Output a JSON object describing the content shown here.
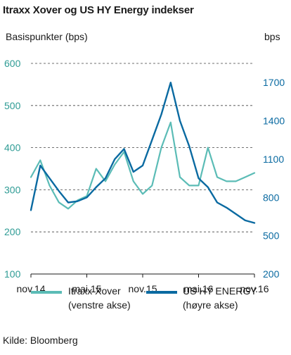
{
  "title": "Itraxx Xover og US HY Energy indekser",
  "source": "Kilde: Bloomberg",
  "colors": {
    "xover": "#5bbcb6",
    "energy": "#0a6aa1",
    "left_axis_text": "#2f9c95",
    "right_axis_text": "#0a6aa1",
    "grid": "#444444"
  },
  "chart_data": {
    "type": "line",
    "title": "Itraxx Xover og US HY Energy indekser",
    "ylabel_left": "Basispunkter (bps)",
    "ylabel_right": "bps",
    "x_ticks": [
      "nov.14",
      "mai.15",
      "nov.15",
      "mai.16",
      "nov.16"
    ],
    "x_range": [
      "2014-11",
      "2016-11"
    ],
    "ylim_left": [
      100,
      600
    ],
    "yticks_left": [
      100,
      200,
      300,
      400,
      500,
      600
    ],
    "ylim_right": [
      200,
      1850
    ],
    "yticks_right": [
      200,
      500,
      800,
      1100,
      1400,
      1700
    ],
    "grid": "horizontal dashed",
    "legend_position": "bottom",
    "series": [
      {
        "name": "Itraxx Xover",
        "legend_note": "(venstre akse)",
        "axis": "left",
        "x": [
          "2014-11",
          "2014-12",
          "2015-01",
          "2015-02",
          "2015-03",
          "2015-04",
          "2015-05",
          "2015-06",
          "2015-07",
          "2015-08",
          "2015-09",
          "2015-10",
          "2015-11",
          "2015-12",
          "2016-01",
          "2016-02",
          "2016-03",
          "2016-04",
          "2016-05",
          "2016-06",
          "2016-07",
          "2016-08",
          "2016-09",
          "2016-10",
          "2016-11"
        ],
        "values": [
          330,
          370,
          310,
          270,
          255,
          275,
          285,
          350,
          320,
          360,
          390,
          320,
          290,
          310,
          400,
          460,
          330,
          310,
          310,
          400,
          330,
          320,
          320,
          330,
          340
        ]
      },
      {
        "name": "US HY ENERGY",
        "legend_note": "(høyre akse)",
        "axis": "right",
        "x": [
          "2014-11",
          "2014-12",
          "2015-01",
          "2015-02",
          "2015-03",
          "2015-04",
          "2015-05",
          "2015-06",
          "2015-07",
          "2015-08",
          "2015-09",
          "2015-10",
          "2015-11",
          "2015-12",
          "2016-01",
          "2016-02",
          "2016-03",
          "2016-04",
          "2016-05",
          "2016-06",
          "2016-07",
          "2016-08",
          "2016-09",
          "2016-10",
          "2016-11"
        ],
        "values": [
          700,
          1050,
          950,
          850,
          760,
          770,
          800,
          880,
          950,
          1100,
          1180,
          1000,
          1050,
          1250,
          1450,
          1700,
          1400,
          1200,
          950,
          880,
          760,
          720,
          670,
          620,
          600
        ]
      }
    ]
  }
}
